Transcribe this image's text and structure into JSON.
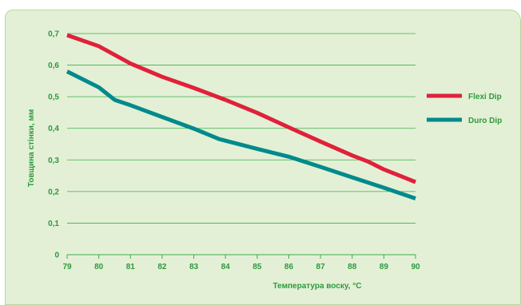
{
  "chart_data": {
    "type": "line",
    "xlabel": "Температура воску, °C",
    "ylabel": "Товщина стінки, мм",
    "x_ticks": [
      "79",
      "80",
      "81",
      "82",
      "83",
      "84",
      "85",
      "86",
      "87",
      "88",
      "89",
      "90"
    ],
    "y_ticks": [
      "0",
      "0,1",
      "0,2",
      "0,3",
      "0,4",
      "0,5",
      "0,6",
      "0,7"
    ],
    "xlim": [
      79,
      90
    ],
    "ylim": [
      0,
      0.7
    ],
    "grid": "horizontal",
    "legend_position": "right",
    "series": [
      {
        "name": "Flexi Dip",
        "color": "#e0213a",
        "x": [
          79,
          80,
          81,
          82,
          83,
          84,
          85,
          86,
          87,
          88,
          88.5,
          89,
          90
        ],
        "y": [
          0.695,
          0.66,
          0.605,
          0.563,
          0.528,
          0.49,
          0.449,
          0.403,
          0.358,
          0.314,
          0.295,
          0.27,
          0.23
        ]
      },
      {
        "name": "Duro Dip",
        "color": "#008a8c",
        "x": [
          79,
          80,
          80.5,
          81,
          82,
          83,
          83.8,
          85,
          86,
          87,
          88,
          89,
          90
        ],
        "y": [
          0.58,
          0.53,
          0.49,
          0.473,
          0.436,
          0.399,
          0.366,
          0.335,
          0.31,
          0.278,
          0.245,
          0.212,
          0.178
        ]
      }
    ]
  }
}
